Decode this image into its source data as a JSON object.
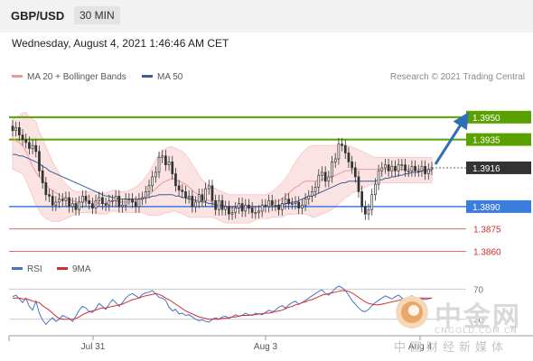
{
  "header": {
    "symbol": "GBP/USD",
    "timeframe": "30 MIN",
    "datetime": "Wednesday, August 4, 2021 1:46:46 AM CET"
  },
  "legend": {
    "ma20_label": "MA 20 + Bollinger Bands",
    "ma50_label": "MA 50",
    "rsi_label": "RSI",
    "ma9_label": "9MA",
    "credit": "Research © 2021 Trading Central"
  },
  "colors": {
    "ma20": "#e89a9a",
    "bollinger_fill": "#fbe3e3",
    "ma50": "#3a5f9a",
    "resistance": "#5aa000",
    "pivot": "#3b7ddd",
    "support": "#e86a6a",
    "current": "#333333",
    "candle": "#333333",
    "arrow": "#2f6fb8",
    "rsi": "#4a72c4",
    "rsi_ma": "#d22c2c"
  },
  "watermark": {
    "text": "中金网",
    "url": "CNGOLD.COM.CN",
    "subtitle": "中国财经新媒体"
  },
  "chart_data": [
    {
      "type": "candlestick",
      "title": "GBP/USD",
      "timeframe": "30 MIN",
      "x_tick_labels": [
        "Jul 31",
        "Aug 3",
        "Aug 4"
      ],
      "ylim": [
        1.3853,
        1.3962
      ],
      "levels": [
        {
          "value": 1.395,
          "label": "1.3950",
          "kind": "resistance"
        },
        {
          "value": 1.3935,
          "label": "1.3935",
          "kind": "resistance"
        },
        {
          "value": 1.3916,
          "label": "1.3916",
          "kind": "current"
        },
        {
          "value": 1.389,
          "label": "1.3890",
          "kind": "pivot"
        },
        {
          "value": 1.3875,
          "label": "1.3875",
          "kind": "support"
        },
        {
          "value": 1.386,
          "label": "1.3860",
          "kind": "support"
        }
      ],
      "close": [
        1.3941,
        1.3943,
        1.3938,
        1.3935,
        1.3933,
        1.3929,
        1.3931,
        1.3927,
        1.3914,
        1.3906,
        1.3898,
        1.3897,
        1.3891,
        1.3893,
        1.3895,
        1.3894,
        1.3896,
        1.389,
        1.3892,
        1.3888,
        1.3893,
        1.3897,
        1.3894,
        1.3892,
        1.3889,
        1.3894,
        1.3896,
        1.3892,
        1.3891,
        1.3894,
        1.3894,
        1.3897,
        1.389,
        1.3891,
        1.3895,
        1.3895,
        1.3893,
        1.389,
        1.3895,
        1.3896,
        1.39,
        1.3904,
        1.391,
        1.3913,
        1.3923,
        1.3924,
        1.3918,
        1.392,
        1.3912,
        1.3904,
        1.3901,
        1.39,
        1.3896,
        1.3897,
        1.389,
        1.3893,
        1.3898,
        1.3894,
        1.3902,
        1.3904,
        1.3894,
        1.3888,
        1.3894,
        1.3888,
        1.389,
        1.3885,
        1.3886,
        1.3889,
        1.3892,
        1.3887,
        1.3891,
        1.3889,
        1.3886,
        1.3886,
        1.3887,
        1.3891,
        1.389,
        1.3894,
        1.3891,
        1.3891,
        1.3888,
        1.3892,
        1.3895,
        1.3892,
        1.3892,
        1.3893,
        1.3889,
        1.3891,
        1.3895,
        1.3897,
        1.39,
        1.3903,
        1.3911,
        1.3913,
        1.3907,
        1.391,
        1.392,
        1.3922,
        1.3932,
        1.3931,
        1.3926,
        1.392,
        1.3916,
        1.391,
        1.39,
        1.389,
        1.3885,
        1.3888,
        1.3898,
        1.3905,
        1.3914,
        1.3916,
        1.3918,
        1.3914,
        1.3917,
        1.3914,
        1.3918,
        1.3918,
        1.3914,
        1.3914,
        1.3917,
        1.3914,
        1.3914,
        1.3917,
        1.3912,
        1.3915,
        1.3916
      ],
      "series": [
        {
          "name": "MA 20",
          "values": [
            1.3936,
            1.3934,
            1.3933,
            1.3931,
            1.3927,
            1.3922,
            1.3917,
            1.3913,
            1.391,
            1.3908,
            1.3905,
            1.3902,
            1.3901,
            1.3899,
            1.3898,
            1.3896,
            1.3895,
            1.3895,
            1.3894,
            1.3893,
            1.3893,
            1.3893,
            1.3893,
            1.3893,
            1.3893,
            1.3893,
            1.3892,
            1.3892,
            1.3892,
            1.3893,
            1.3894,
            1.3894,
            1.3893,
            1.3893,
            1.3893,
            1.3893,
            1.3893,
            1.3894,
            1.3895,
            1.3896,
            1.3897,
            1.3898,
            1.39,
            1.3902,
            1.3904,
            1.3906,
            1.3907,
            1.3908,
            1.3909,
            1.3908,
            1.3907,
            1.3906,
            1.3905,
            1.3903,
            1.3901,
            1.3899,
            1.3898,
            1.3896,
            1.3895,
            1.3894,
            1.3893,
            1.3892,
            1.3891,
            1.389,
            1.3889,
            1.3889,
            1.3889,
            1.3889,
            1.3889,
            1.3889,
            1.3889,
            1.3889,
            1.3889,
            1.389,
            1.389,
            1.389,
            1.389,
            1.3891,
            1.3892,
            1.3893,
            1.3894,
            1.3895,
            1.3897,
            1.3899,
            1.3901,
            1.3903,
            1.3904,
            1.3906,
            1.3907,
            1.3907,
            1.3907,
            1.3907,
            1.3908,
            1.3908,
            1.3909,
            1.3909,
            1.391,
            1.3911,
            1.3912,
            1.3913,
            1.3914,
            1.3914,
            1.3915,
            1.3915,
            1.3915,
            1.3915,
            1.3915,
            1.3915,
            1.3915,
            1.3915,
            1.3915,
            1.3915,
            1.3915,
            1.3915,
            1.3915,
            1.3915,
            1.3915,
            1.3915,
            1.3915,
            1.3915,
            1.3915,
            1.3915,
            1.3915,
            1.3915,
            1.3915,
            1.3915,
            1.3915
          ]
        },
        {
          "name": "MA 50",
          "values": [
            1.3925,
            1.3925,
            1.3924,
            1.3924,
            1.3923,
            1.3922,
            1.3921,
            1.392,
            1.3919,
            1.3917,
            1.3916,
            1.3914,
            1.3913,
            1.3912,
            1.3911,
            1.391,
            1.3909,
            1.3908,
            1.3907,
            1.3906,
            1.3905,
            1.3904,
            1.3903,
            1.3902,
            1.3901,
            1.39,
            1.3899,
            1.3898,
            1.3897,
            1.3897,
            1.3896,
            1.3896,
            1.3895,
            1.3895,
            1.3895,
            1.3895,
            1.3895,
            1.3895,
            1.3895,
            1.3895,
            1.3896,
            1.3896,
            1.3897,
            1.3897,
            1.3898,
            1.3898,
            1.3898,
            1.3898,
            1.3898,
            1.3897,
            1.3897,
            1.3896,
            1.3896,
            1.3895,
            1.3895,
            1.3894,
            1.3894,
            1.3893,
            1.3893,
            1.3892,
            1.3892,
            1.3891,
            1.3891,
            1.3891,
            1.389,
            1.389,
            1.389,
            1.389,
            1.389,
            1.389,
            1.389,
            1.389,
            1.389,
            1.389,
            1.389,
            1.389,
            1.389,
            1.389,
            1.389,
            1.389,
            1.3891,
            1.3891,
            1.3892,
            1.3892,
            1.3893,
            1.3893,
            1.3894,
            1.3895,
            1.3896,
            1.3897,
            1.3897,
            1.3898,
            1.3899,
            1.39,
            1.3901,
            1.3902,
            1.3903,
            1.3904,
            1.3905,
            1.3906,
            1.3906,
            1.3907,
            1.3907,
            1.3907,
            1.3907,
            1.3907,
            1.3907,
            1.3907,
            1.3907,
            1.3907,
            1.3908,
            1.3908,
            1.3909,
            1.3909,
            1.391,
            1.391,
            1.3911,
            1.3911,
            1.3912,
            1.3912,
            1.3913,
            1.3913,
            1.3913,
            1.3914,
            1.3914,
            1.3914,
            1.3914
          ]
        },
        {
          "name": "Bollinger Upper",
          "values": [
            1.3949,
            1.395,
            1.3951,
            1.3953,
            1.3953,
            1.395,
            1.3949,
            1.3947,
            1.394,
            1.3936,
            1.393,
            1.3925,
            1.392,
            1.3916,
            1.3912,
            1.3908,
            1.3905,
            1.3903,
            1.3901,
            1.39,
            1.39,
            1.39,
            1.39,
            1.39,
            1.39,
            1.39,
            1.3899,
            1.3899,
            1.3899,
            1.39,
            1.3901,
            1.3901,
            1.39,
            1.39,
            1.39,
            1.3901,
            1.3902,
            1.3903,
            1.3905,
            1.3907,
            1.391,
            1.3913,
            1.3917,
            1.3921,
            1.3925,
            1.3927,
            1.3929,
            1.393,
            1.393,
            1.3929,
            1.3928,
            1.3927,
            1.3925,
            1.3922,
            1.3918,
            1.3915,
            1.3911,
            1.3908,
            1.3906,
            1.3904,
            1.3903,
            1.3902,
            1.3901,
            1.39,
            1.3899,
            1.3898,
            1.3898,
            1.3898,
            1.3898,
            1.3898,
            1.3898,
            1.3898,
            1.3898,
            1.3898,
            1.3898,
            1.3898,
            1.3898,
            1.3899,
            1.39,
            1.3902,
            1.3904,
            1.3906,
            1.3909,
            1.3912,
            1.3916,
            1.392,
            1.3923,
            1.3926,
            1.3928,
            1.393,
            1.3931,
            1.3931,
            1.3931,
            1.3931,
            1.3931,
            1.3931,
            1.3931,
            1.3931,
            1.3931,
            1.3931,
            1.3931,
            1.3931,
            1.393,
            1.3929,
            1.3928,
            1.3927,
            1.3926,
            1.3925,
            1.3924,
            1.3923,
            1.3923,
            1.3923,
            1.3923,
            1.3923,
            1.3923,
            1.3923,
            1.3923,
            1.3923,
            1.3923,
            1.3923,
            1.3923,
            1.3923,
            1.3923,
            1.3923,
            1.3923,
            1.3923,
            1.3923
          ]
        },
        {
          "name": "Bollinger Lower",
          "values": [
            1.3915,
            1.3914,
            1.3913,
            1.3912,
            1.3908,
            1.3902,
            1.3897,
            1.3891,
            1.3887,
            1.3884,
            1.3882,
            1.3881,
            1.388,
            1.388,
            1.388,
            1.3881,
            1.3882,
            1.3883,
            1.3884,
            1.3885,
            1.3886,
            1.3886,
            1.3886,
            1.3886,
            1.3886,
            1.3886,
            1.3885,
            1.3885,
            1.3885,
            1.3886,
            1.3887,
            1.3887,
            1.3886,
            1.3886,
            1.3886,
            1.3886,
            1.3886,
            1.3886,
            1.3886,
            1.3886,
            1.3885,
            1.3884,
            1.3884,
            1.3884,
            1.3884,
            1.3885,
            1.3886,
            1.3886,
            1.3887,
            1.3887,
            1.3886,
            1.3885,
            1.3884,
            1.3883,
            1.3883,
            1.3883,
            1.3883,
            1.3883,
            1.3883,
            1.3883,
            1.3883,
            1.3882,
            1.3881,
            1.388,
            1.3879,
            1.3879,
            1.3879,
            1.3879,
            1.3879,
            1.3879,
            1.3879,
            1.3879,
            1.388,
            1.3881,
            1.3882,
            1.3882,
            1.3882,
            1.3882,
            1.3883,
            1.3883,
            1.3883,
            1.3883,
            1.3884,
            1.3885,
            1.3885,
            1.3885,
            1.3885,
            1.3885,
            1.3885,
            1.3884,
            1.3883,
            1.3883,
            1.3884,
            1.3885,
            1.3886,
            1.3887,
            1.3888,
            1.389,
            1.3892,
            1.3894,
            1.3896,
            1.3897,
            1.3899,
            1.39,
            1.3901,
            1.3902,
            1.3903,
            1.3904,
            1.3905,
            1.3906,
            1.3906,
            1.3906,
            1.3906,
            1.3906,
            1.3906,
            1.3906,
            1.3906,
            1.3906,
            1.3906,
            1.3906,
            1.3906,
            1.3906,
            1.3906,
            1.3906,
            1.3906,
            1.3906,
            1.3906
          ]
        }
      ]
    },
    {
      "type": "line",
      "title": "RSI",
      "levels": [
        {
          "value": 70,
          "label": "70"
        },
        {
          "value": 30,
          "label": "30"
        }
      ],
      "ylim": [
        20,
        80
      ],
      "series": [
        {
          "name": "RSI",
          "values": [
            60,
            62,
            57,
            52,
            58,
            47,
            42,
            54,
            38,
            29,
            23,
            28,
            32,
            27,
            30,
            35,
            33,
            31,
            27,
            34,
            42,
            47,
            45,
            40,
            39,
            44,
            51,
            47,
            43,
            50,
            56,
            52,
            47,
            52,
            58,
            62,
            64,
            61,
            58,
            63,
            65,
            66,
            68,
            64,
            59,
            58,
            55,
            46,
            41,
            43,
            37,
            38,
            35,
            36,
            33,
            30,
            28,
            29,
            27,
            26,
            30,
            32,
            30,
            33,
            34,
            31,
            33,
            36,
            34,
            35,
            38,
            36,
            35,
            38,
            37,
            36,
            39,
            42,
            40,
            42,
            46,
            48,
            45,
            49,
            52,
            54,
            50,
            52,
            55,
            58,
            61,
            64,
            67,
            69,
            64,
            62,
            66,
            71,
            74,
            72,
            68,
            62,
            55,
            50,
            45,
            41,
            40,
            43,
            48,
            52,
            55,
            58,
            61,
            59,
            57,
            60,
            62,
            58,
            56,
            59,
            61,
            58,
            55,
            57,
            56,
            57,
            58
          ]
        },
        {
          "name": "9MA",
          "values": [
            58,
            58,
            58,
            57,
            57,
            56,
            54,
            53,
            52,
            48,
            45,
            42,
            38,
            34,
            31,
            30,
            30,
            30,
            30,
            31,
            33,
            36,
            38,
            40,
            41,
            42,
            44,
            45,
            45,
            46,
            47,
            48,
            49,
            50,
            52,
            54,
            56,
            57,
            58,
            60,
            61,
            62,
            63,
            64,
            63,
            61,
            58,
            56,
            53,
            50,
            47,
            44,
            41,
            39,
            37,
            35,
            33,
            32,
            31,
            30,
            30,
            30,
            30,
            31,
            31,
            32,
            33,
            33,
            34,
            35,
            35,
            35,
            36,
            36,
            37,
            37,
            38,
            38,
            39,
            40,
            41,
            42,
            44,
            46,
            47,
            49,
            50,
            52,
            53,
            55,
            56,
            58,
            60,
            62,
            63,
            64,
            65,
            66,
            67,
            68,
            68,
            67,
            65,
            62,
            59,
            56,
            53,
            51,
            50,
            49,
            49,
            50,
            51,
            52,
            53,
            54,
            55,
            56,
            57,
            57,
            58,
            58,
            58,
            58,
            58,
            58,
            58
          ]
        }
      ]
    }
  ]
}
